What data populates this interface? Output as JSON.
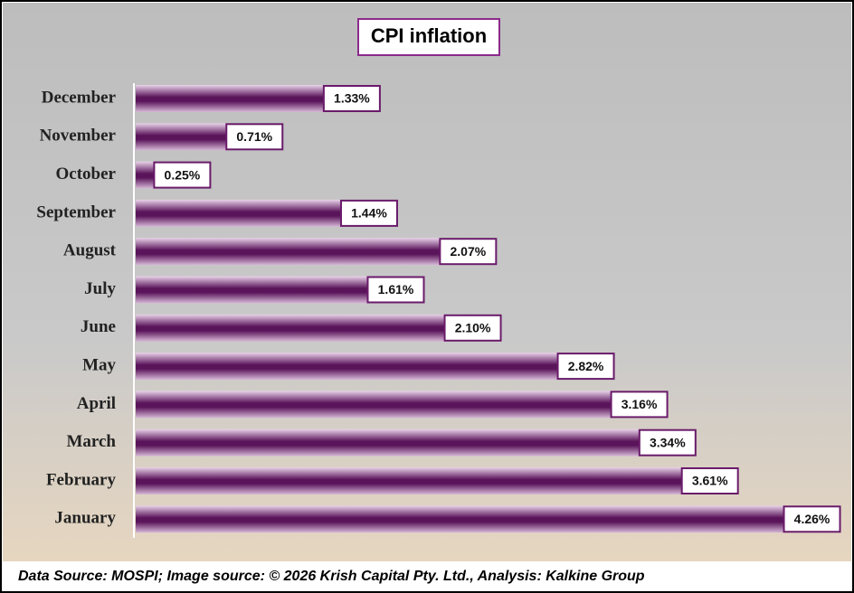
{
  "chart_data": {
    "type": "bar",
    "orientation": "horizontal",
    "title": "CPI inflation",
    "categories": [
      "December",
      "November",
      "October",
      "September",
      "August",
      "July",
      "June",
      "May",
      "April",
      "March",
      "February",
      "January"
    ],
    "values": [
      1.33,
      0.71,
      0.25,
      1.44,
      2.07,
      1.61,
      2.1,
      2.82,
      3.16,
      3.34,
      3.61,
      4.26
    ],
    "value_labels": [
      "1.33%",
      "0.71%",
      "0.25%",
      "1.44%",
      "2.07%",
      "1.61%",
      "2.10%",
      "2.82%",
      "3.16%",
      "3.34%",
      "3.61%",
      "4.26%"
    ],
    "color": "#6a1b6a",
    "footer": "Data Source: MOSPI; Image source: © 2026 Krish Capital Pty. Ltd., Analysis: Kalkine Group"
  }
}
